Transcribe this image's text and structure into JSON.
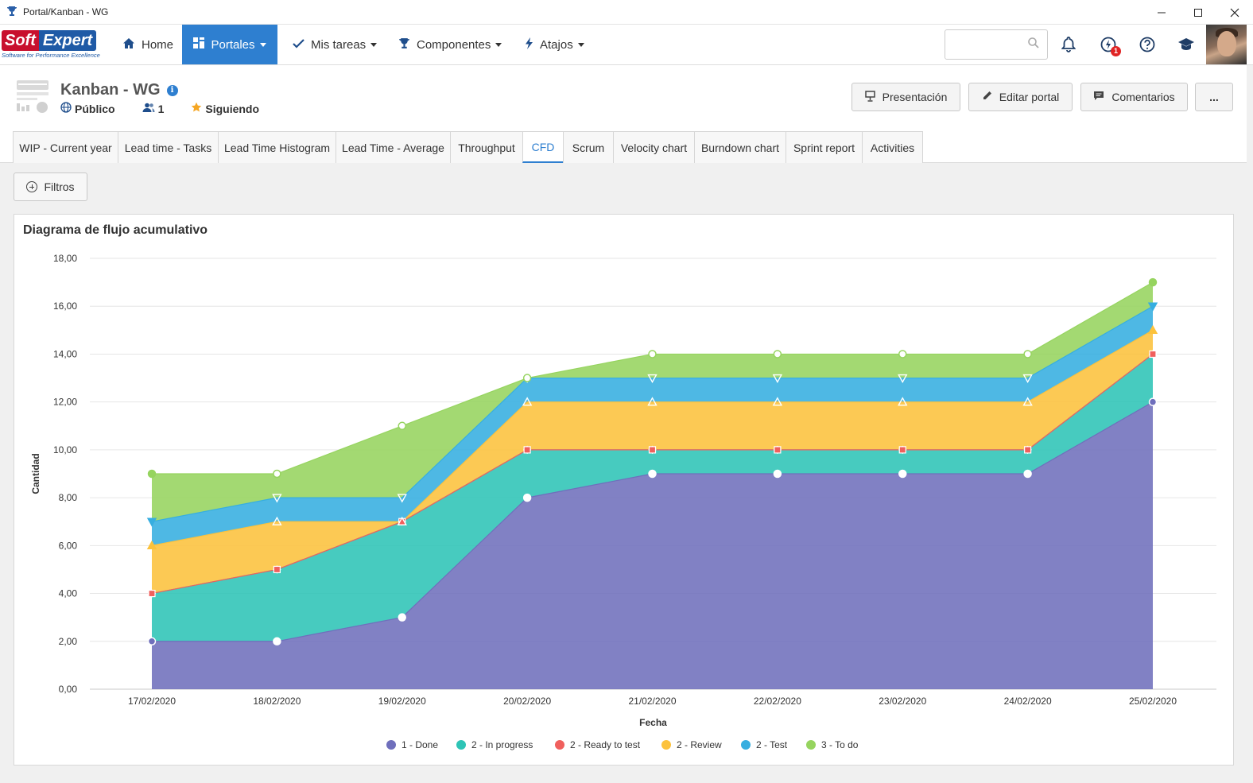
{
  "window": {
    "title": "Portal/Kanban - WG",
    "app_icon": "trophy-icon",
    "controls": [
      "minimize-icon",
      "maximize-icon",
      "close-icon"
    ]
  },
  "brand": {
    "name_part1": "Soft",
    "name_part2": "Expert",
    "tagline": "Software for Performance Excellence"
  },
  "nav": {
    "items": [
      {
        "label": "Home",
        "icon": "home-icon"
      },
      {
        "label": "Portales",
        "icon": "portals-icon",
        "active": true
      },
      {
        "label": "Mis tareas",
        "icon": "check-icon"
      },
      {
        "label": "Componentes",
        "icon": "trophy-icon"
      },
      {
        "label": "Atajos",
        "icon": "bolt-icon"
      }
    ],
    "search": {
      "value": "",
      "placeholder": ""
    },
    "notification_badge": "1"
  },
  "portal": {
    "title": "Kanban - WG",
    "visibility": "Público",
    "members": "1",
    "follow_status": "Siguiendo",
    "buttons": {
      "presentation": "Presentación",
      "edit": "Editar portal",
      "comments": "Comentarios",
      "more": "..."
    }
  },
  "tabs": [
    {
      "label": "WIP - Current year"
    },
    {
      "label": "Lead time - Tasks"
    },
    {
      "label": "Lead Time Histogram"
    },
    {
      "label": "Lead Time - Average"
    },
    {
      "label": "Throughput"
    },
    {
      "label": "CFD",
      "active": true
    },
    {
      "label": "Scrum"
    },
    {
      "label": "Velocity chart"
    },
    {
      "label": "Burndown chart"
    },
    {
      "label": "Sprint report"
    },
    {
      "label": "Activities"
    }
  ],
  "filters_label": "Filtros",
  "chart_data": {
    "type": "area",
    "stacked": true,
    "title": "Diagrama de flujo acumulativo",
    "xlabel": "Fecha",
    "ylabel": "Cantidad",
    "ylim": [
      0,
      18
    ],
    "yticks": [
      "0,00",
      "2,00",
      "4,00",
      "6,00",
      "8,00",
      "10,00",
      "12,00",
      "14,00",
      "16,00",
      "18,00"
    ],
    "categories": [
      "17/02/2020",
      "18/02/2020",
      "19/02/2020",
      "20/02/2020",
      "21/02/2020",
      "22/02/2020",
      "23/02/2020",
      "24/02/2020",
      "25/02/2020"
    ],
    "legend_position": "bottom",
    "grid": true,
    "series": [
      {
        "name": "1 - Done",
        "color": "#6f6fbc",
        "values": [
          2,
          2,
          3,
          8,
          9,
          9,
          9,
          9,
          12
        ]
      },
      {
        "name": "2 - In progress",
        "color": "#2ec4b6",
        "values": [
          2,
          3,
          4,
          2,
          1,
          1,
          1,
          1,
          2
        ]
      },
      {
        "name": "2 - Ready to test",
        "color": "#f0605d",
        "values": [
          0,
          0,
          0,
          0,
          0,
          0,
          0,
          0,
          0
        ]
      },
      {
        "name": "2 - Review",
        "color": "#fcc23c",
        "values": [
          2,
          2,
          0,
          2,
          2,
          2,
          2,
          2,
          1
        ]
      },
      {
        "name": "2 - Test",
        "color": "#36aee0",
        "values": [
          1,
          1,
          1,
          1,
          1,
          1,
          1,
          1,
          1
        ]
      },
      {
        "name": "3 - To do",
        "color": "#96d45f",
        "values": [
          2,
          1,
          3,
          0,
          1,
          1,
          1,
          1,
          1
        ]
      }
    ]
  }
}
